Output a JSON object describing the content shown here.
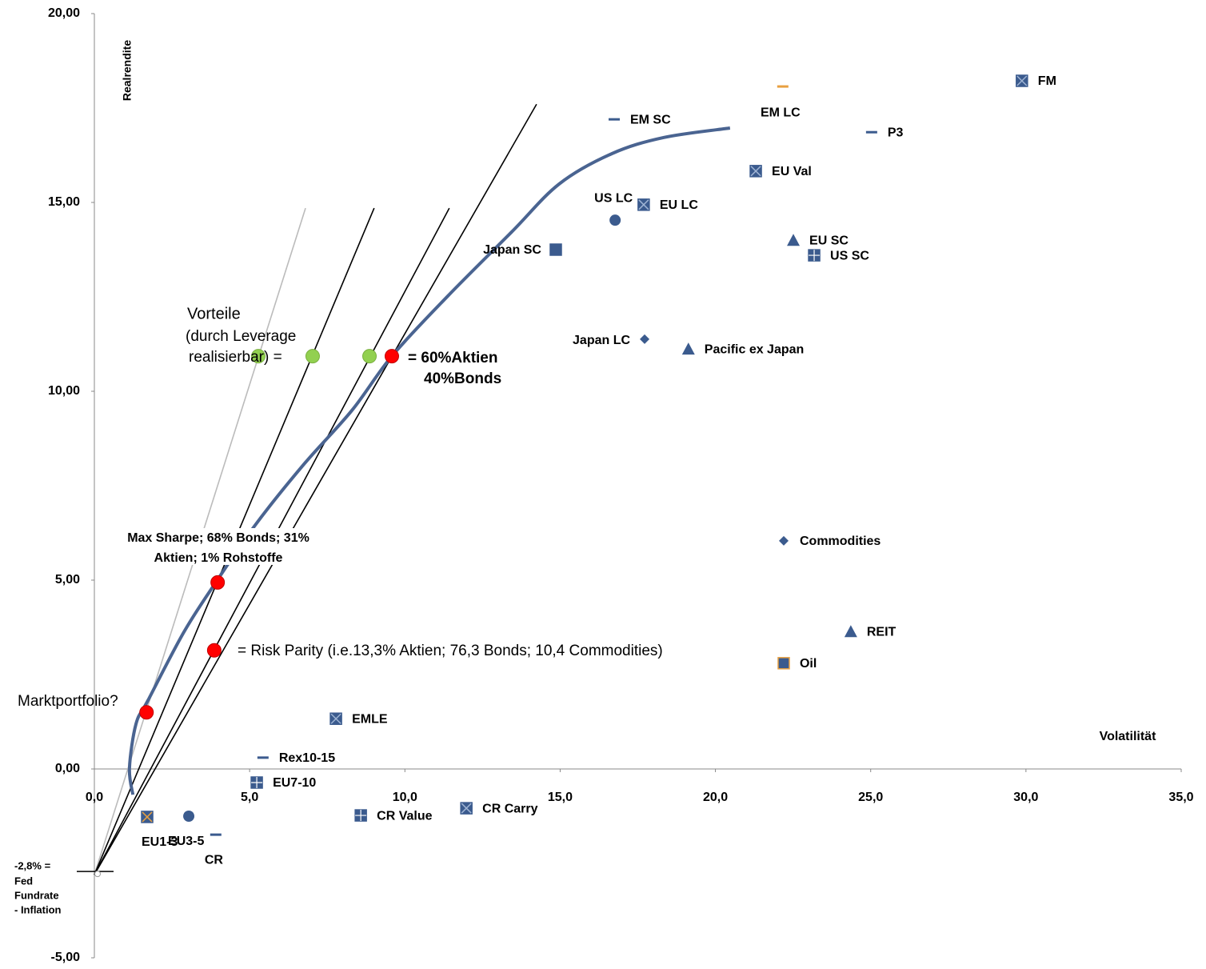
{
  "chart_data": {
    "type": "scatter",
    "x_label": "Volatilität",
    "y_label": "Realrendite",
    "xlim": [
      0,
      35
    ],
    "ylim": [
      -5,
      20
    ],
    "xticks": [
      {
        "value": 0,
        "label": "0,0"
      },
      {
        "value": 5,
        "label": "5,0"
      },
      {
        "value": 10,
        "label": "10,0"
      },
      {
        "value": 15,
        "label": "15,0"
      },
      {
        "value": 20,
        "label": "20,0"
      },
      {
        "value": 25,
        "label": "25,0"
      },
      {
        "value": 30,
        "label": "30,0"
      },
      {
        "value": 35,
        "label": "35,0"
      }
    ],
    "yticks": [
      {
        "value": -5,
        "label": "-5,00"
      },
      {
        "value": 0,
        "label": "0,00"
      },
      {
        "value": 5,
        "label": "5,00"
      },
      {
        "value": 10,
        "label": "10,00"
      },
      {
        "value": 15,
        "label": "15,00"
      },
      {
        "value": 20,
        "label": "20,00"
      }
    ],
    "grid": false,
    "marker_color": "#3b5b8e",
    "points": [
      {
        "name": "FM",
        "x": 29.87,
        "y": 18.22,
        "marker": "square-x"
      },
      {
        "name": "EM LC",
        "x": 22.17,
        "y": 18.07,
        "marker": "dash",
        "color": "#e8a040"
      },
      {
        "name": "EM SC",
        "x": 16.74,
        "y": 17.2,
        "marker": "dash"
      },
      {
        "name": "P3",
        "x": 25.03,
        "y": 16.86,
        "marker": "dash"
      },
      {
        "name": "EU Val",
        "x": 21.3,
        "y": 15.83,
        "marker": "square-x"
      },
      {
        "name": "US LC",
        "x": 16.77,
        "y": 14.53,
        "marker": "circle"
      },
      {
        "name": "EU LC",
        "x": 17.69,
        "y": 14.94,
        "marker": "square-x"
      },
      {
        "name": "EU SC",
        "x": 22.51,
        "y": 14.0,
        "marker": "triangle"
      },
      {
        "name": "US SC",
        "x": 23.18,
        "y": 13.6,
        "marker": "square-plus"
      },
      {
        "name": "Japan SC",
        "x": 14.86,
        "y": 13.75,
        "marker": "square"
      },
      {
        "name": "Japan LC",
        "x": 17.72,
        "y": 11.38,
        "marker": "diamond"
      },
      {
        "name": "Pacific ex Japan",
        "x": 19.13,
        "y": 11.12,
        "marker": "triangle"
      },
      {
        "name": "Commodities",
        "x": 22.2,
        "y": 6.04,
        "marker": "diamond"
      },
      {
        "name": "REIT",
        "x": 24.36,
        "y": 3.64,
        "marker": "triangle"
      },
      {
        "name": "Oil",
        "x": 22.2,
        "y": 2.8,
        "marker": "square",
        "color": "#e8a040"
      },
      {
        "name": "EMLE",
        "x": 7.78,
        "y": 1.33,
        "marker": "square-x"
      },
      {
        "name": "Rex10-15",
        "x": 5.43,
        "y": 0.3,
        "marker": "dash"
      },
      {
        "name": "EU7-10",
        "x": 5.23,
        "y": -0.36,
        "marker": "square-plus"
      },
      {
        "name": "CR Carry",
        "x": 11.98,
        "y": -1.04,
        "marker": "square-x"
      },
      {
        "name": "CR Value",
        "x": 8.58,
        "y": -1.23,
        "marker": "square-plus"
      },
      {
        "name": "EU1-3",
        "x": 1.7,
        "y": -1.27,
        "marker": "square-x",
        "color": "#e8a040"
      },
      {
        "name": "EU3-5",
        "x": 3.04,
        "y": -1.25,
        "marker": "circle"
      },
      {
        "name": "CR",
        "x": 3.91,
        "y": -1.74,
        "marker": "dash"
      }
    ],
    "frontier": {
      "color": "#4a6491",
      "x": [
        1.24,
        1.13,
        1.34,
        1.73,
        2.88,
        3.91,
        5.2,
        6.75,
        8.29,
        9.58,
        11.38,
        13.44,
        14.97,
        16.66,
        18.34,
        20.47
      ],
      "y": [
        -0.68,
        0.02,
        1.19,
        1.82,
        3.62,
        4.94,
        6.48,
        8.07,
        9.49,
        10.93,
        12.52,
        14.22,
        15.49,
        16.29,
        16.72,
        16.97
      ]
    },
    "lines": [
      {
        "color": "#bbbbbb",
        "x": [
          0,
          6.8
        ],
        "y": [
          -2.8,
          14.85
        ]
      },
      {
        "color": "#000000",
        "x": [
          0,
          9.01
        ],
        "y": [
          -2.8,
          14.85
        ]
      },
      {
        "color": "#000000",
        "x": [
          0,
          11.43
        ],
        "y": [
          -2.8,
          14.85
        ]
      },
      {
        "color": "#000000",
        "x": [
          0,
          14.24
        ],
        "y": [
          -2.8,
          17.6
        ]
      }
    ],
    "highlights": [
      {
        "color": "#ff0000",
        "x": [
          1.68,
          3.97,
          3.86,
          9.58
        ],
        "y": [
          1.5,
          4.94,
          3.14,
          10.93
        ]
      },
      {
        "color": "#92d050",
        "x": [
          5.28,
          7.03,
          8.86
        ],
        "y": [
          10.93,
          10.93,
          10.93
        ]
      }
    ],
    "annotations": [
      "Vorteile",
      "(durch Leverage",
      "realisierbar) =",
      "= 60%Aktien",
      "40%Bonds",
      "Max Sharpe; 68% Bonds; 31%",
      "Aktien; 1% Rohstoffe",
      "= Risk Parity (i.e.13,3% Aktien; 76,3 Bonds; 10,4 Commodities)",
      "Marktportfolio?",
      "-2,8% =",
      "Fed",
      "Fundrate",
      "- Inflation"
    ]
  }
}
